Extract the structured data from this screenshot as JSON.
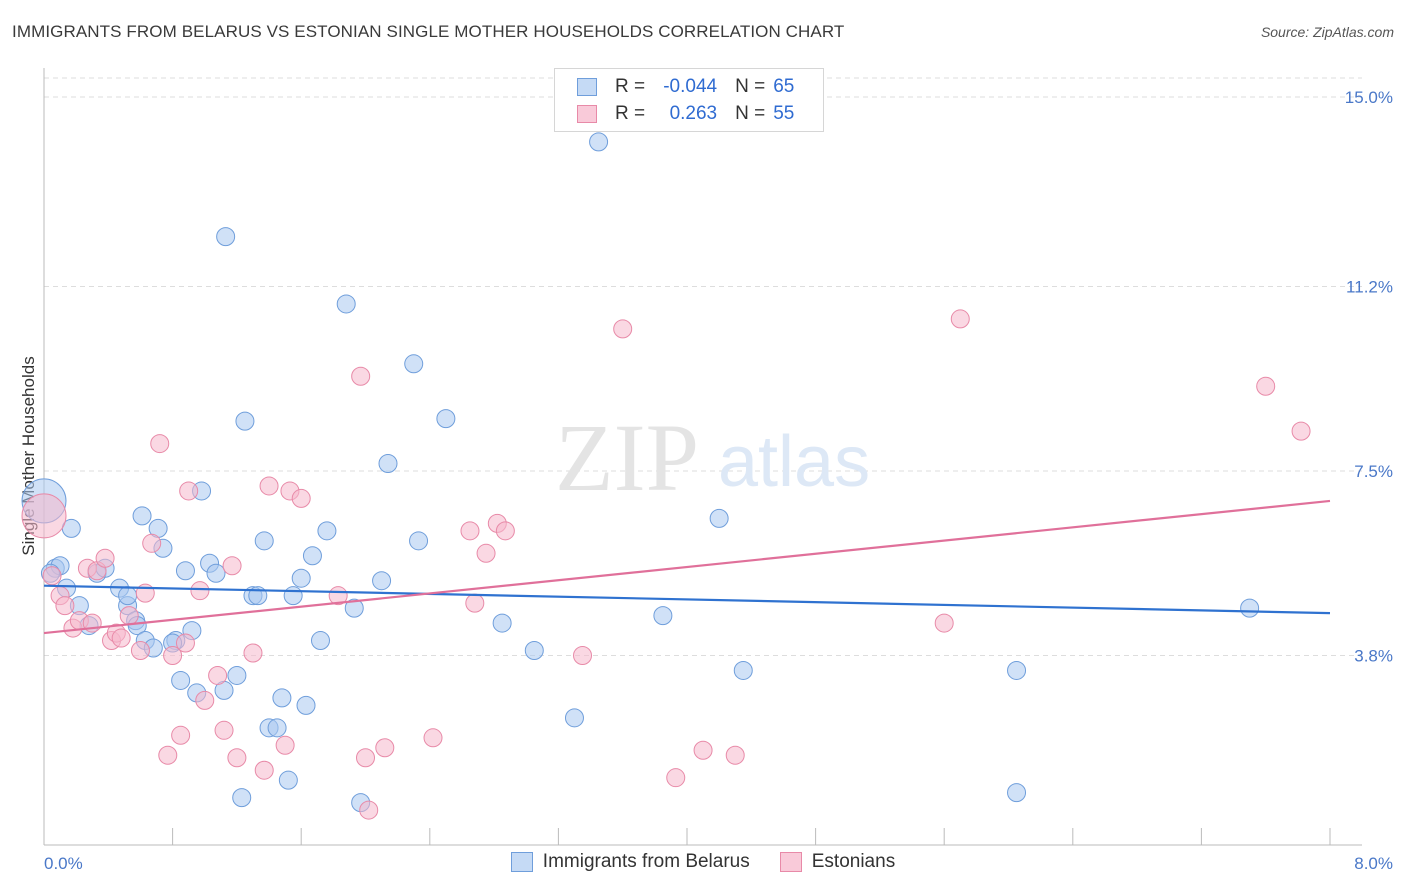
{
  "title": "IMMIGRANTS FROM BELARUS VS ESTONIAN SINGLE MOTHER HOUSEHOLDS CORRELATION CHART",
  "source": "Source: ZipAtlas.com",
  "watermark": {
    "zip": "ZIP",
    "atlas": "atlas"
  },
  "legend": {
    "r_label": "R =",
    "n_label": "N =",
    "rows": [
      {
        "r": "-0.044",
        "n": "65"
      },
      {
        "r": "0.263",
        "n": "55"
      }
    ]
  },
  "bottom_legend": [
    "Immigrants from Belarus",
    "Estonians"
  ],
  "colors": {
    "blue_fill": "#a9c8f0",
    "blue_stroke": "#6f9edb",
    "blue_line": "#2f72d0",
    "pink_fill": "#f5b8cc",
    "pink_stroke": "#e88aa8",
    "pink_line": "#e0709a",
    "tick_text": "#4a78c8",
    "grid": "#dddddd"
  },
  "chart_data": {
    "type": "scatter",
    "title": "IMMIGRANTS FROM BELARUS VS ESTONIAN SINGLE MOTHER HOUSEHOLDS CORRELATION CHART",
    "xlabel": "",
    "ylabel": "Single Mother Households",
    "xlim": [
      0.0,
      8.0
    ],
    "ylim": [
      0.0,
      15.0
    ],
    "x_tick_labels": [
      "0.0%",
      "8.0%"
    ],
    "y_ticks": [
      3.8,
      7.5,
      11.2,
      15.0
    ],
    "y_tick_labels": [
      "3.8%",
      "7.5%",
      "11.2%",
      "15.0%"
    ],
    "grid": true,
    "series": [
      {
        "name": "Immigrants from Belarus",
        "r": -0.044,
        "n": 65,
        "trend": {
          "x": [
            0.0,
            8.0
          ],
          "y": [
            5.2,
            4.65
          ]
        },
        "points": [
          [
            0.0,
            6.9
          ],
          [
            0.07,
            5.55
          ],
          [
            0.17,
            6.35
          ],
          [
            0.1,
            5.6
          ],
          [
            0.14,
            5.15
          ],
          [
            0.22,
            4.8
          ],
          [
            0.28,
            4.4
          ],
          [
            0.33,
            5.45
          ],
          [
            0.38,
            5.55
          ],
          [
            0.47,
            5.15
          ],
          [
            0.52,
            4.8
          ],
          [
            0.52,
            5.0
          ],
          [
            0.57,
            4.5
          ],
          [
            0.61,
            6.6
          ],
          [
            0.58,
            4.4
          ],
          [
            0.63,
            4.1
          ],
          [
            0.68,
            3.95
          ],
          [
            0.71,
            6.35
          ],
          [
            0.74,
            5.95
          ],
          [
            0.82,
            4.1
          ],
          [
            0.8,
            4.05
          ],
          [
            0.85,
            3.3
          ],
          [
            0.88,
            5.5
          ],
          [
            0.92,
            4.3
          ],
          [
            0.95,
            3.05
          ],
          [
            0.98,
            7.1
          ],
          [
            1.03,
            5.65
          ],
          [
            1.07,
            5.45
          ],
          [
            1.12,
            3.1
          ],
          [
            1.13,
            12.2
          ],
          [
            1.2,
            3.4
          ],
          [
            1.23,
            0.95
          ],
          [
            1.25,
            8.5
          ],
          [
            1.3,
            5.0
          ],
          [
            1.33,
            5.0
          ],
          [
            1.37,
            6.1
          ],
          [
            1.4,
            2.35
          ],
          [
            1.45,
            2.35
          ],
          [
            1.48,
            2.95
          ],
          [
            1.52,
            1.3
          ],
          [
            1.55,
            5.0
          ],
          [
            1.6,
            5.35
          ],
          [
            1.63,
            2.8
          ],
          [
            1.67,
            5.8
          ],
          [
            1.72,
            4.1
          ],
          [
            1.76,
            6.3
          ],
          [
            1.88,
            10.85
          ],
          [
            1.93,
            4.75
          ],
          [
            1.97,
            0.85
          ],
          [
            2.1,
            5.3
          ],
          [
            2.14,
            7.65
          ],
          [
            2.3,
            9.65
          ],
          [
            2.33,
            6.1
          ],
          [
            2.5,
            8.55
          ],
          [
            2.85,
            4.45
          ],
          [
            3.05,
            3.9
          ],
          [
            3.3,
            2.55
          ],
          [
            3.45,
            14.1
          ],
          [
            3.85,
            4.6
          ],
          [
            4.2,
            6.55
          ],
          [
            4.35,
            3.5
          ],
          [
            6.05,
            3.5
          ],
          [
            6.05,
            1.05
          ],
          [
            7.5,
            4.75
          ],
          [
            0.04,
            5.45
          ]
        ]
      },
      {
        "name": "Estonians",
        "r": 0.263,
        "n": 55,
        "trend": {
          "x": [
            0.0,
            8.0
          ],
          "y": [
            4.25,
            6.9
          ]
        },
        "points": [
          [
            0.0,
            6.6
          ],
          [
            0.05,
            5.4
          ],
          [
            0.1,
            5.0
          ],
          [
            0.13,
            4.8
          ],
          [
            0.18,
            4.35
          ],
          [
            0.22,
            4.5
          ],
          [
            0.27,
            5.55
          ],
          [
            0.3,
            4.45
          ],
          [
            0.33,
            5.5
          ],
          [
            0.38,
            5.75
          ],
          [
            0.42,
            4.1
          ],
          [
            0.45,
            4.25
          ],
          [
            0.48,
            4.15
          ],
          [
            0.53,
            4.6
          ],
          [
            0.6,
            3.9
          ],
          [
            0.63,
            5.05
          ],
          [
            0.67,
            6.05
          ],
          [
            0.72,
            8.05
          ],
          [
            0.77,
            1.8
          ],
          [
            0.8,
            3.8
          ],
          [
            0.85,
            2.2
          ],
          [
            0.88,
            4.05
          ],
          [
            0.9,
            7.1
          ],
          [
            0.97,
            5.1
          ],
          [
            1.0,
            2.9
          ],
          [
            1.08,
            3.4
          ],
          [
            1.12,
            2.3
          ],
          [
            1.17,
            5.6
          ],
          [
            1.2,
            1.75
          ],
          [
            1.3,
            3.85
          ],
          [
            1.37,
            1.5
          ],
          [
            1.4,
            7.2
          ],
          [
            1.5,
            2.0
          ],
          [
            1.53,
            7.1
          ],
          [
            1.6,
            6.95
          ],
          [
            1.83,
            5.0
          ],
          [
            1.97,
            9.4
          ],
          [
            2.0,
            1.75
          ],
          [
            2.02,
            0.7
          ],
          [
            2.12,
            1.95
          ],
          [
            2.42,
            2.15
          ],
          [
            2.65,
            6.3
          ],
          [
            2.68,
            4.85
          ],
          [
            2.75,
            5.85
          ],
          [
            2.82,
            6.45
          ],
          [
            2.87,
            6.3
          ],
          [
            3.35,
            3.8
          ],
          [
            3.6,
            10.35
          ],
          [
            3.93,
            1.35
          ],
          [
            4.1,
            1.9
          ],
          [
            4.3,
            1.8
          ],
          [
            5.6,
            4.45
          ],
          [
            5.7,
            10.55
          ],
          [
            7.6,
            9.2
          ],
          [
            7.82,
            8.3
          ]
        ]
      }
    ]
  }
}
